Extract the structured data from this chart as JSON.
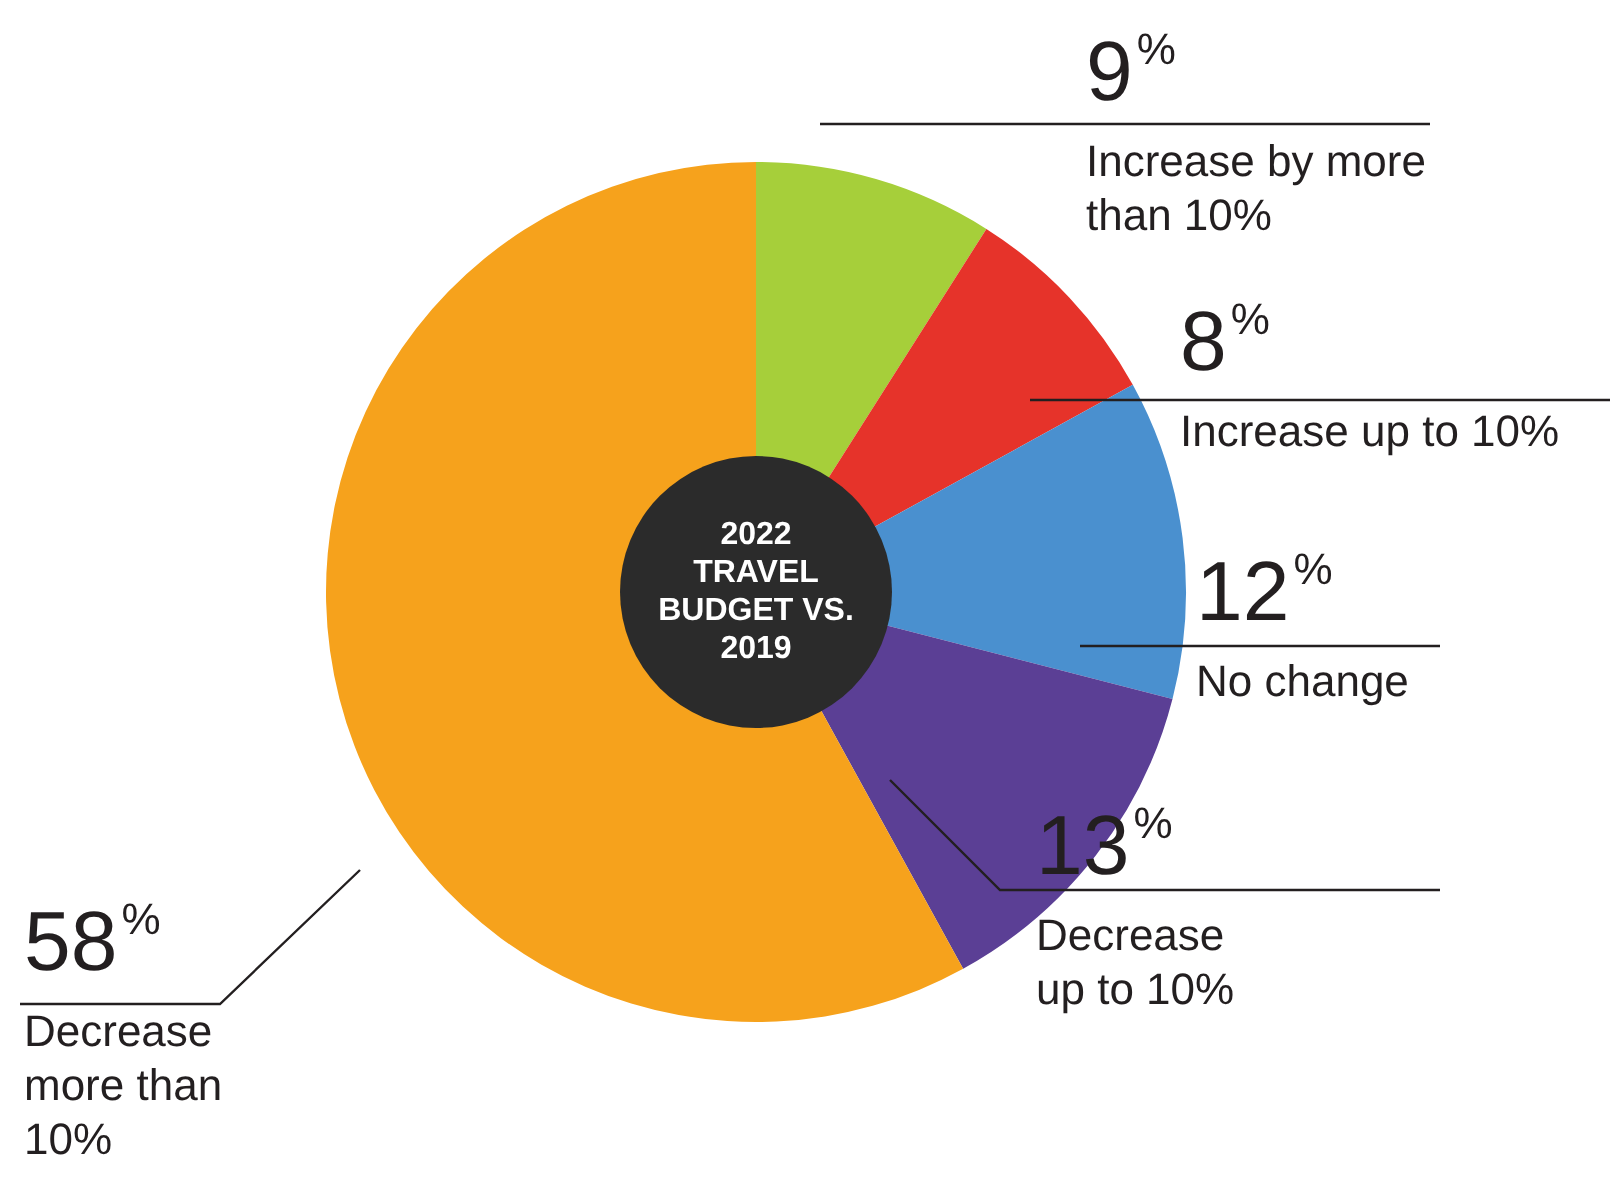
{
  "chart_data": {
    "type": "donut",
    "title": "2022 TRAVEL BUDGET VS. 2019",
    "categories": [
      "Increase by more than 10%",
      "Increase up to 10%",
      "No change",
      "Decrease up to 10%",
      "Decrease more than 10%"
    ],
    "values": [
      9,
      8,
      12,
      13,
      58
    ],
    "colors": [
      "#a6cf3a",
      "#e6332a",
      "#4a90cf",
      "#5b3f95",
      "#f6a21c"
    ],
    "value_labels": [
      "9%",
      "8%",
      "12%",
      "13%",
      "58%"
    ],
    "legend": false
  }
}
